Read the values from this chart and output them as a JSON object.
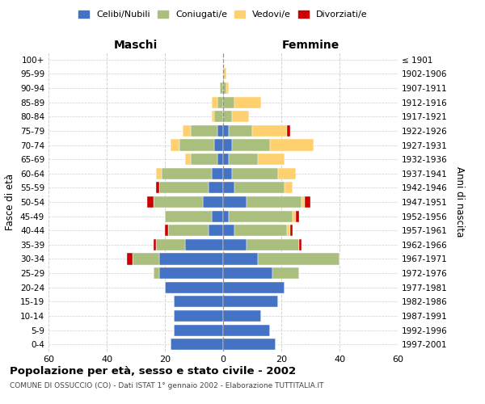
{
  "age_groups": [
    "0-4",
    "5-9",
    "10-14",
    "15-19",
    "20-24",
    "25-29",
    "30-34",
    "35-39",
    "40-44",
    "45-49",
    "50-54",
    "55-59",
    "60-64",
    "65-69",
    "70-74",
    "75-79",
    "80-84",
    "85-89",
    "90-94",
    "95-99",
    "100+"
  ],
  "birth_years": [
    "1997-2001",
    "1992-1996",
    "1987-1991",
    "1982-1986",
    "1977-1981",
    "1972-1976",
    "1967-1971",
    "1962-1966",
    "1957-1961",
    "1952-1956",
    "1947-1951",
    "1942-1946",
    "1937-1941",
    "1932-1936",
    "1927-1931",
    "1922-1926",
    "1917-1921",
    "1912-1916",
    "1907-1911",
    "1902-1906",
    "≤ 1901"
  ],
  "colors": {
    "celibe": "#4472C4",
    "coniugato": "#AABF7E",
    "vedovo": "#FFD070",
    "divorziato": "#CC0000"
  },
  "maschi": {
    "celibe": [
      18,
      17,
      17,
      17,
      20,
      22,
      22,
      13,
      5,
      4,
      7,
      5,
      4,
      2,
      3,
      2,
      0,
      0,
      0,
      0,
      0
    ],
    "coniugato": [
      0,
      0,
      0,
      0,
      0,
      2,
      9,
      10,
      14,
      16,
      17,
      17,
      17,
      9,
      12,
      9,
      3,
      2,
      1,
      0,
      0
    ],
    "vedovo": [
      0,
      0,
      0,
      0,
      0,
      0,
      0,
      0,
      0,
      0,
      0,
      0,
      2,
      2,
      3,
      3,
      1,
      2,
      0,
      0,
      0
    ],
    "divorziato": [
      0,
      0,
      0,
      0,
      0,
      0,
      2,
      1,
      1,
      0,
      2,
      1,
      0,
      0,
      0,
      0,
      0,
      0,
      0,
      0,
      0
    ]
  },
  "femmine": {
    "celibe": [
      18,
      16,
      13,
      19,
      21,
      17,
      12,
      8,
      4,
      2,
      8,
      4,
      3,
      2,
      3,
      2,
      0,
      0,
      0,
      0,
      0
    ],
    "coniugato": [
      0,
      0,
      0,
      0,
      0,
      9,
      28,
      18,
      18,
      22,
      19,
      17,
      16,
      10,
      13,
      8,
      3,
      4,
      1,
      0,
      0
    ],
    "vedovo": [
      0,
      0,
      0,
      0,
      0,
      0,
      0,
      0,
      1,
      1,
      1,
      3,
      6,
      9,
      15,
      12,
      6,
      9,
      1,
      1,
      0
    ],
    "divorziato": [
      0,
      0,
      0,
      0,
      0,
      0,
      0,
      1,
      1,
      1,
      2,
      0,
      0,
      0,
      0,
      1,
      0,
      0,
      0,
      0,
      0
    ]
  },
  "xlim": 60,
  "title": "Popolazione per età, sesso e stato civile - 2002",
  "subtitle": "COMUNE DI OSSUCCIO (CO) - Dati ISTAT 1° gennaio 2002 - Elaborazione TUTTITALIA.IT",
  "xlabel_left": "Maschi",
  "xlabel_right": "Femmine",
  "ylabel_left": "Fasce di età",
  "ylabel_right": "Anni di nascita",
  "bg_color": "#FFFFFF",
  "grid_color": "#CCCCCC",
  "bar_height": 0.8,
  "legend_labels": [
    "Celibi/Nubili",
    "Coniugati/e",
    "Vedovi/e",
    "Divorziati/e"
  ]
}
